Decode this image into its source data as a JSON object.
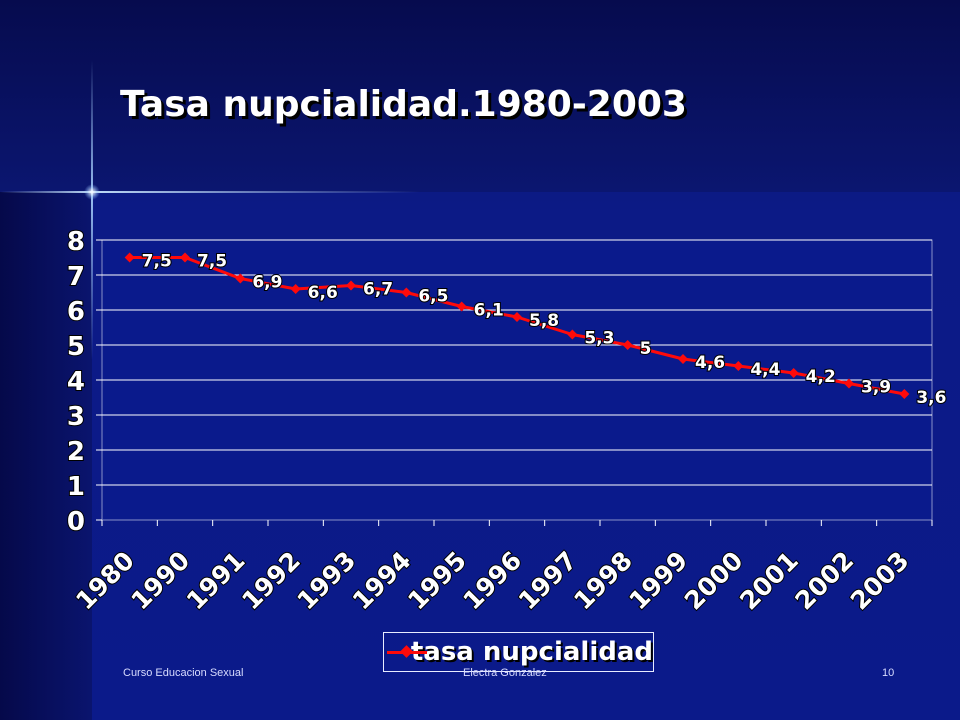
{
  "slide": {
    "title": "Tasa nupcialidad.1980-2003",
    "footer_left": "Curso Educacion Sexual",
    "footer_center": "Electra Gonzalez",
    "page_number": "10"
  },
  "colors": {
    "background": "#0b1a8a",
    "series": "#ff0a0a",
    "gridline": "#ffffff",
    "text": "#ffffff"
  },
  "chart_data": {
    "type": "line",
    "title": "",
    "xlabel": "",
    "ylabel": "",
    "categories": [
      "1980",
      "1990",
      "1991",
      "1992",
      "1993",
      "1994",
      "1995",
      "1996",
      "1997",
      "1998",
      "1999",
      "2000",
      "2001",
      "2002",
      "2003"
    ],
    "series": [
      {
        "name": "tasa nupcialidad",
        "values": [
          7.5,
          7.5,
          6.9,
          6.6,
          6.7,
          6.5,
          6.1,
          5.8,
          5.3,
          5.0,
          4.6,
          4.4,
          4.2,
          3.9,
          3.6
        ],
        "data_labels": [
          "7,5",
          "7,5",
          "6,9",
          "6,6",
          "6,7",
          "6,5",
          "6,1",
          "5,8",
          "5,3",
          "5",
          "4,6",
          "4,4",
          "4,2",
          "3,9",
          "3,6"
        ]
      }
    ],
    "ylim": [
      0,
      8
    ],
    "yticks": [
      "0",
      "1",
      "2",
      "3",
      "4",
      "5",
      "6",
      "7",
      "8"
    ],
    "grid": true,
    "legend_position": "bottom"
  }
}
